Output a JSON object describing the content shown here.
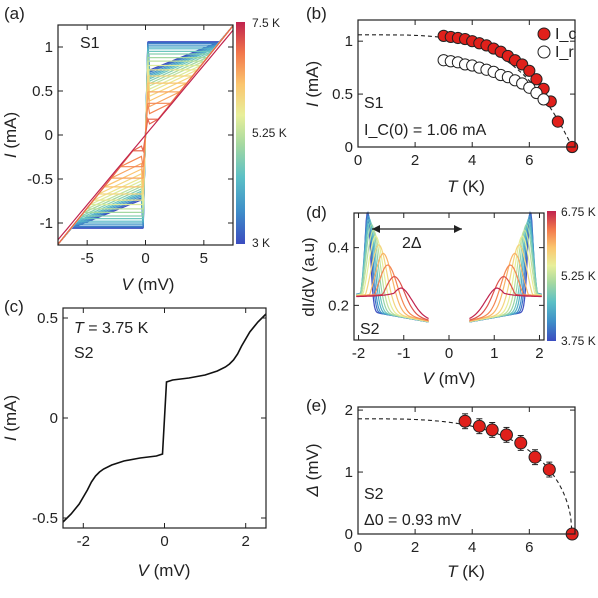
{
  "colors": {
    "cold": "#3b4cc0",
    "hot": "#c0234e",
    "marker_ic": "#e0201b",
    "marker_ir": "#ffffff",
    "axis": "#222222"
  },
  "chart_data": [
    {
      "id": "a",
      "panel_label": "(a)",
      "type": "line",
      "annotation": "S1",
      "xlabel_sym": "V",
      "xlabel_unit": "(mV)",
      "ylabel_sym": "I",
      "ylabel_unit": "(mA)",
      "xlim": [
        -7.5,
        7.5
      ],
      "ylim": [
        -1.25,
        1.25
      ],
      "xticks": [
        -5,
        0,
        5
      ],
      "xtick_labels": [
        "-5",
        "0",
        "5"
      ],
      "yticks": [
        -1,
        -0.5,
        0,
        0.5,
        1
      ],
      "ytick_labels": [
        "-1",
        "-0.5",
        "0",
        "0.5",
        "1"
      ],
      "colorbar": {
        "min": 3,
        "max": 7.5,
        "tick_labels": [
          "7.5 K",
          "5.25 K",
          "3 K"
        ]
      },
      "series_temperatures_K": [
        3.0,
        3.25,
        3.5,
        3.75,
        4.0,
        4.25,
        4.5,
        4.75,
        5.0,
        5.25,
        5.5,
        5.75,
        6.0,
        6.25,
        6.5,
        6.75,
        7.0,
        7.5
      ],
      "switching_current_mA": [
        1.06,
        1.05,
        1.04,
        1.02,
        1.0,
        0.98,
        0.95,
        0.92,
        0.88,
        0.84,
        0.79,
        0.74,
        0.67,
        0.59,
        0.49,
        0.36,
        0.18,
        0.0
      ],
      "retrapping_current_mA": [
        0.82,
        0.8,
        0.79,
        0.77,
        0.75,
        0.73,
        0.71,
        0.68,
        0.65,
        0.62,
        0.58,
        0.54,
        0.49,
        0.43,
        0.36,
        0.27,
        0.14,
        0.0
      ],
      "normal_resistance_ohm": 6.3
    },
    {
      "id": "b",
      "panel_label": "(b)",
      "type": "scatter",
      "annotation": "S1",
      "annotation2": "I_C(0) = 1.06 mA",
      "xlabel_sym": "T",
      "xlabel_unit": "(K)",
      "ylabel_sym": "I",
      "ylabel_unit": "(mA)",
      "xlim": [
        0,
        7.6
      ],
      "ylim": [
        0,
        1.2
      ],
      "xticks": [
        0,
        2,
        4,
        6
      ],
      "xtick_labels": [
        "0",
        "2",
        "4",
        "6"
      ],
      "yticks": [
        0,
        0.5,
        1
      ],
      "ytick_labels": [
        "0",
        "0.5",
        "1"
      ],
      "legend_position": "top-right",
      "series": [
        {
          "name": "I_c",
          "x": [
            3.0,
            3.25,
            3.5,
            3.75,
            4.0,
            4.25,
            4.5,
            4.75,
            5.0,
            5.25,
            5.5,
            5.75,
            6.0,
            6.25,
            6.5,
            6.75,
            7.0,
            7.5
          ],
          "y": [
            1.05,
            1.04,
            1.03,
            1.02,
            1.0,
            0.98,
            0.96,
            0.93,
            0.9,
            0.86,
            0.82,
            0.78,
            0.72,
            0.64,
            0.55,
            0.43,
            0.24,
            0.0
          ]
        },
        {
          "name": "I_r",
          "x": [
            3.0,
            3.25,
            3.5,
            3.75,
            4.0,
            4.25,
            4.5,
            4.75,
            5.0,
            5.25,
            5.5,
            5.75,
            6.0,
            6.25,
            6.5
          ],
          "y": [
            0.82,
            0.81,
            0.8,
            0.78,
            0.77,
            0.75,
            0.73,
            0.71,
            0.68,
            0.66,
            0.63,
            0.6,
            0.56,
            0.51,
            0.45
          ]
        }
      ],
      "fit": {
        "style": "dashed",
        "I0": 1.06,
        "Tc": 7.5
      }
    },
    {
      "id": "c",
      "panel_label": "(c)",
      "type": "line",
      "annotation_sym": "T",
      "annotation_val": " = 3.75 K",
      "annotation2": "S2",
      "xlabel_sym": "V",
      "xlabel_unit": "(mV)",
      "ylabel_sym": "I",
      "ylabel_unit": "(mA)",
      "xlim": [
        -2.5,
        2.5
      ],
      "ylim": [
        -0.55,
        0.55
      ],
      "xticks": [
        -2,
        0,
        2
      ],
      "xtick_labels": [
        "-2",
        "0",
        "2"
      ],
      "yticks": [
        -0.5,
        0,
        0.5
      ],
      "ytick_labels": [
        "-0.5",
        "0",
        "0.5"
      ],
      "x": [
        -2.5,
        -2.3,
        -2.1,
        -1.9,
        -1.8,
        -1.7,
        -1.6,
        -1.5,
        -1.3,
        -1.0,
        -0.6,
        -0.2,
        -0.05,
        0.0,
        0.05,
        0.2,
        0.6,
        1.0,
        1.3,
        1.5,
        1.6,
        1.7,
        1.8,
        1.9,
        2.1,
        2.3,
        2.5
      ],
      "y": [
        -0.52,
        -0.48,
        -0.43,
        -0.36,
        -0.32,
        -0.29,
        -0.27,
        -0.255,
        -0.235,
        -0.215,
        -0.2,
        -0.19,
        -0.18,
        0.0,
        0.18,
        0.19,
        0.2,
        0.215,
        0.235,
        0.255,
        0.27,
        0.29,
        0.32,
        0.36,
        0.43,
        0.48,
        0.52
      ]
    },
    {
      "id": "d",
      "panel_label": "(d)",
      "type": "line",
      "annotation": "S2",
      "gap_label": "2Δ",
      "xlabel_sym": "V",
      "xlabel_unit": "(mV)",
      "ylabel_text": "dI/dV (a.u)",
      "xlim": [
        -2.1,
        2.1
      ],
      "ylim": [
        0.08,
        0.52
      ],
      "xticks": [
        -2,
        -1,
        0,
        1,
        2
      ],
      "xtick_labels": [
        "-2",
        "-1",
        "0",
        "1",
        "2"
      ],
      "yticks": [
        0.2,
        0.4
      ],
      "ytick_labels": [
        "0.2",
        "0.4"
      ],
      "colorbar": {
        "min": 3.75,
        "max": 6.75,
        "tick_labels": [
          "6.75 K",
          "5.25 K",
          "3.75 K"
        ]
      },
      "series_temperatures_K": [
        3.75,
        4.0,
        4.25,
        4.5,
        4.75,
        5.0,
        5.25,
        5.5,
        5.75,
        6.0,
        6.25,
        6.5,
        6.75
      ],
      "peak_position_mV": [
        1.8,
        1.79,
        1.78,
        1.76,
        1.74,
        1.71,
        1.67,
        1.62,
        1.55,
        1.45,
        1.35,
        1.2,
        1.05
      ],
      "peak_height": [
        0.5,
        0.49,
        0.48,
        0.47,
        0.46,
        0.45,
        0.43,
        0.41,
        0.38,
        0.35,
        0.31,
        0.27,
        0.23
      ]
    },
    {
      "id": "e",
      "panel_label": "(e)",
      "type": "scatter",
      "annotation": "S2",
      "annotation2": "Δ0 = 0.93 mV",
      "xlabel_sym": "T",
      "xlabel_unit": "(K)",
      "ylabel_sym": "Δ",
      "ylabel_unit": "(mV)",
      "xlim": [
        0,
        7.6
      ],
      "ylim": [
        0,
        2.05
      ],
      "xticks": [
        0,
        2,
        4,
        6
      ],
      "xtick_labels": [
        "0",
        "2",
        "4",
        "6"
      ],
      "yticks": [
        0,
        1,
        2
      ],
      "ytick_labels": [
        "0",
        "1",
        "2"
      ],
      "x": [
        3.75,
        4.25,
        4.7,
        5.2,
        5.7,
        6.2,
        6.7,
        7.5
      ],
      "y": [
        1.82,
        1.74,
        1.68,
        1.6,
        1.47,
        1.24,
        1.04,
        0.0
      ],
      "yerr": [
        0.12,
        0.12,
        0.12,
        0.12,
        0.12,
        0.12,
        0.12,
        0.0
      ],
      "fit": {
        "style": "dashed",
        "D0": 1.86,
        "Tc": 7.5
      }
    }
  ]
}
